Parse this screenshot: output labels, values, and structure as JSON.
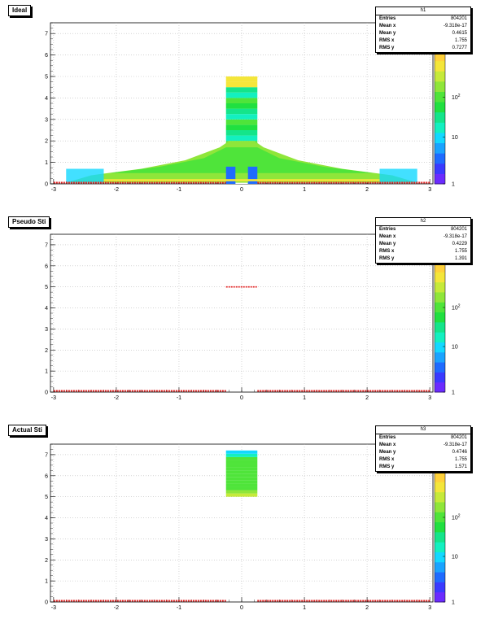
{
  "panels": [
    {
      "title": "Ideal",
      "stats": {
        "name": "h1",
        "rows": [
          {
            "k": "Entries",
            "v": "804201"
          },
          {
            "k": "Mean x",
            "v": "-9.318e-17"
          },
          {
            "k": "Mean y",
            "v": "0.4615"
          },
          {
            "k": "RMS x",
            "v": "1.755"
          },
          {
            "k": "RMS y",
            "v": "0.7277"
          }
        ]
      }
    },
    {
      "title": "Pseudo Sti",
      "stats": {
        "name": "h2",
        "rows": [
          {
            "k": "Entries",
            "v": "804201"
          },
          {
            "k": "Mean x",
            "v": "-9.318e-17"
          },
          {
            "k": "Mean y",
            "v": "0.4229"
          },
          {
            "k": "RMS x",
            "v": "1.755"
          },
          {
            "k": "RMS y",
            "v": "1.391"
          }
        ]
      }
    },
    {
      "title": "Actual Sti",
      "stats": {
        "name": "h3",
        "rows": [
          {
            "k": "Entries",
            "v": "804201"
          },
          {
            "k": "Mean x",
            "v": "-9.318e-17"
          },
          {
            "k": "Mean y",
            "v": "0.4746"
          },
          {
            "k": "RMS x",
            "v": "1.755"
          },
          {
            "k": "RMS y",
            "v": "1.571"
          }
        ]
      }
    }
  ],
  "chart_data": [
    {
      "type": "heatmap",
      "title": "Ideal",
      "xlim": [
        -3.05,
        3.05
      ],
      "ylim": [
        0,
        7.5
      ],
      "x_ticks": [
        "-3",
        "-2",
        "-1",
        "0",
        "1",
        "2",
        "3"
      ],
      "y_ticks": [
        "0",
        "1",
        "2",
        "3",
        "4",
        "5",
        "6",
        "7"
      ],
      "grid": true,
      "z_scale": "log",
      "z_ticks": [
        "1",
        "10",
        "10^2"
      ],
      "regions": [
        {
          "name": "central column",
          "x": [
            -0.25,
            0.25
          ],
          "y": [
            0,
            5.0
          ]
        },
        {
          "name": "fan",
          "x": [
            -2.8,
            2.8
          ],
          "y": [
            0,
            2.0
          ]
        },
        {
          "name": "baseline",
          "x": [
            -3.0,
            3.0
          ],
          "y": [
            0,
            0.05
          ]
        }
      ]
    },
    {
      "type": "heatmap",
      "title": "Pseudo Sti",
      "xlim": [
        -3.05,
        3.05
      ],
      "ylim": [
        0,
        7.5
      ],
      "x_ticks": [
        "-3",
        "-2",
        "-1",
        "0",
        "1",
        "2",
        "3"
      ],
      "y_ticks": [
        "0",
        "1",
        "2",
        "3",
        "4",
        "5",
        "6",
        "7"
      ],
      "grid": true,
      "z_scale": "log",
      "z_ticks": [
        "1",
        "10",
        "10^2"
      ],
      "regions": [
        {
          "name": "line at y=5",
          "x": [
            -0.25,
            0.25
          ],
          "y": [
            5.0,
            5.0
          ]
        },
        {
          "name": "baseline",
          "x": [
            -3.0,
            3.0
          ],
          "y": [
            0,
            0.05
          ]
        }
      ]
    },
    {
      "type": "heatmap",
      "title": "Actual Sti",
      "xlim": [
        -3.05,
        3.05
      ],
      "ylim": [
        0,
        7.5
      ],
      "x_ticks": [
        "-3",
        "-2",
        "-1",
        "0",
        "1",
        "2",
        "3"
      ],
      "y_ticks": [
        "0",
        "1",
        "2",
        "3",
        "4",
        "5",
        "6",
        "7"
      ],
      "grid": true,
      "z_scale": "log",
      "z_ticks": [
        "1",
        "10",
        "10^2"
      ],
      "regions": [
        {
          "name": "central block",
          "x": [
            -0.25,
            0.25
          ],
          "y": [
            5.0,
            7.2
          ]
        },
        {
          "name": "baseline",
          "x": [
            -3.0,
            3.0
          ],
          "y": [
            0,
            0.05
          ]
        }
      ]
    }
  ]
}
